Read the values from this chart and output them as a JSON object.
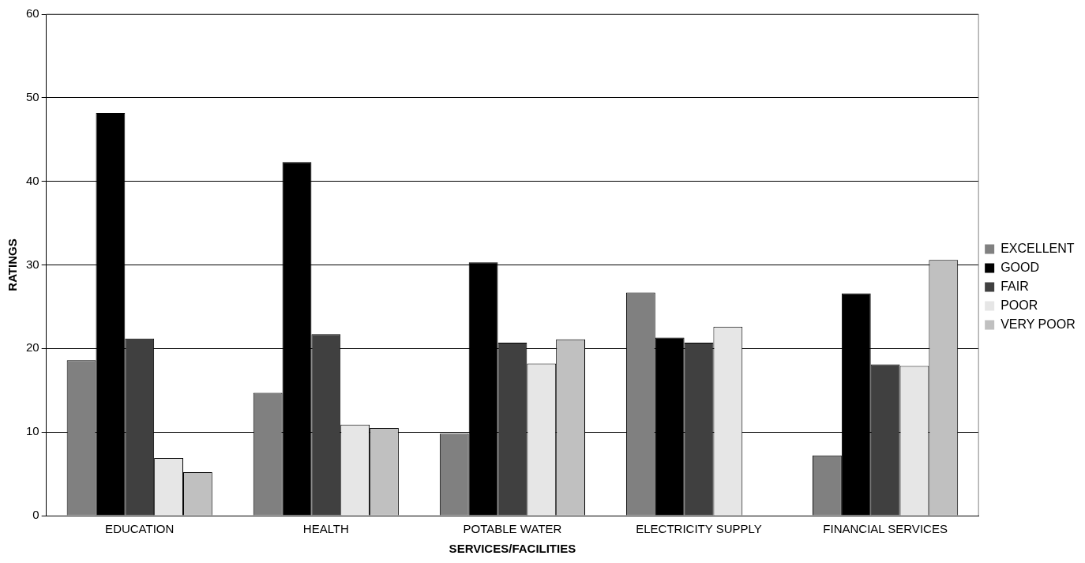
{
  "chart_data": {
    "type": "bar",
    "xlabel": "SERVICES/FACILITIES",
    "ylabel": "RATINGS",
    "categories": [
      "EDUCATION",
      "HEALTH",
      "POTABLE WATER",
      "ELECTRICITY SUPPLY",
      "FINANCIAL SERVICES"
    ],
    "series": [
      {
        "name": "EXCELLENT",
        "color": "#808080",
        "values": [
          18.6,
          14.7,
          9.8,
          26.7,
          7.2
        ]
      },
      {
        "name": "GOOD",
        "color": "#000000",
        "values": [
          48.2,
          42.3,
          30.3,
          21.3,
          26.6
        ]
      },
      {
        "name": "FAIR",
        "color": "#404040",
        "values": [
          21.2,
          21.7,
          20.7,
          20.7,
          18.1
        ]
      },
      {
        "name": "POOR",
        "color": "#e6e6e6",
        "values": [
          6.9,
          10.9,
          18.2,
          22.6,
          17.9
        ]
      },
      {
        "name": "VERY POOR",
        "color": "#c0c0c0",
        "values": [
          5.2,
          10.5,
          21.1,
          null,
          30.6
        ]
      }
    ],
    "ylim": [
      0,
      60
    ],
    "yticks": [
      0,
      10,
      20,
      30,
      40,
      50,
      60
    ],
    "grid": "y",
    "legend": "right"
  }
}
